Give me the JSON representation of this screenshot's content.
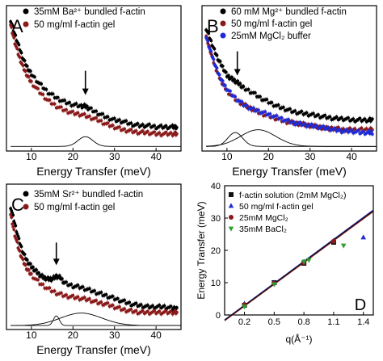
{
  "chart_data": [
    {
      "type": "scatter",
      "panel_label": "A",
      "xlabel": "Energy Transfer (meV)",
      "ylabel": "",
      "xlim": [
        4,
        46
      ],
      "ylim": [
        0,
        1
      ],
      "xticks": [
        "10",
        "20",
        "30",
        "40"
      ],
      "legend": {
        "placement": "top-right"
      },
      "series": [
        {
          "name": "35mM Ba²⁺ bundled f-actin",
          "color": "#000000",
          "marker": "circle",
          "x": [
            5,
            6,
            7,
            8,
            9,
            10,
            12,
            14,
            16,
            18,
            20,
            22,
            23,
            24,
            26,
            28,
            30,
            32,
            34,
            36,
            38,
            40,
            42,
            44,
            45
          ],
          "y": [
            0.92,
            0.82,
            0.73,
            0.64,
            0.58,
            0.53,
            0.46,
            0.4,
            0.36,
            0.33,
            0.31,
            0.3,
            0.3,
            0.28,
            0.25,
            0.22,
            0.2,
            0.19,
            0.17,
            0.16,
            0.16,
            0.15,
            0.15,
            0.15,
            0.15
          ]
        },
        {
          "name": "50 mg/ml f-actin gel",
          "color": "#8b1a1a",
          "marker": "circle",
          "x": [
            5,
            6,
            7,
            8,
            9,
            10,
            12,
            14,
            16,
            18,
            20,
            22,
            24,
            26,
            28,
            30,
            32,
            34,
            36,
            38,
            40,
            42,
            44,
            45
          ],
          "y": [
            0.88,
            0.76,
            0.66,
            0.58,
            0.52,
            0.47,
            0.4,
            0.34,
            0.3,
            0.27,
            0.25,
            0.24,
            0.22,
            0.2,
            0.17,
            0.15,
            0.13,
            0.12,
            0.11,
            0.11,
            0.1,
            0.1,
            0.1,
            0.1
          ]
        }
      ],
      "fit_curves": [
        {
          "type": "peak",
          "center": 23,
          "height": 0.07,
          "width": 2.5,
          "baseline": 0.01
        }
      ],
      "annotation": {
        "type": "arrow",
        "x": 23,
        "y": 0.38
      }
    },
    {
      "type": "scatter",
      "panel_label": "B",
      "xlabel": "Energy Transfer (meV)",
      "ylabel": "",
      "xlim": [
        4,
        46
      ],
      "ylim": [
        0,
        1
      ],
      "xticks": [
        "10",
        "20",
        "30",
        "40"
      ],
      "legend": {
        "placement": "top-right"
      },
      "series": [
        {
          "name": "60 mM Mg²⁺ bundled f-actin",
          "color": "#000000",
          "marker": "circle",
          "x": [
            5,
            6,
            7,
            8,
            9,
            10,
            11,
            12,
            13,
            14,
            16,
            18,
            20,
            22,
            24,
            26,
            28,
            30,
            32,
            34,
            36,
            38,
            40,
            42,
            44,
            45
          ],
          "y": [
            0.86,
            0.78,
            0.7,
            0.63,
            0.58,
            0.52,
            0.5,
            0.48,
            0.46,
            0.43,
            0.4,
            0.36,
            0.33,
            0.3,
            0.28,
            0.26,
            0.25,
            0.24,
            0.23,
            0.22,
            0.21,
            0.21,
            0.2,
            0.2,
            0.2,
            0.2
          ]
        },
        {
          "name": "50 mg/ml f-actin gel",
          "color": "#8b1a1a",
          "marker": "circle",
          "x": [
            5,
            6,
            7,
            8,
            9,
            10,
            12,
            14,
            16,
            18,
            20,
            22,
            24,
            26,
            28,
            30,
            32,
            34,
            36,
            38,
            40,
            42,
            44,
            45
          ],
          "y": [
            0.8,
            0.7,
            0.6,
            0.52,
            0.46,
            0.41,
            0.35,
            0.31,
            0.28,
            0.25,
            0.23,
            0.21,
            0.19,
            0.18,
            0.17,
            0.16,
            0.15,
            0.14,
            0.14,
            0.13,
            0.13,
            0.13,
            0.13,
            0.13
          ]
        },
        {
          "name": "25mM MgCl₂ buffer",
          "color": "#1f2bd6",
          "marker": "circle",
          "x": [
            5,
            6,
            7,
            8,
            9,
            10,
            12,
            14,
            16,
            18,
            20,
            22,
            24,
            26,
            28,
            30,
            32,
            34,
            36,
            38,
            40,
            42,
            44,
            45
          ],
          "y": [
            0.8,
            0.7,
            0.61,
            0.53,
            0.47,
            0.42,
            0.36,
            0.31,
            0.28,
            0.26,
            0.24,
            0.22,
            0.2,
            0.18,
            0.17,
            0.16,
            0.15,
            0.14,
            0.13,
            0.12,
            0.12,
            0.11,
            0.11,
            0.11
          ]
        }
      ],
      "fit_curves": [
        {
          "type": "peak",
          "center": 12,
          "height": 0.1,
          "width": 2.5,
          "baseline": 0.01
        },
        {
          "type": "peak",
          "center": 17.5,
          "height": 0.12,
          "width": 6,
          "baseline": 0.01
        }
      ],
      "annotation": {
        "type": "arrow",
        "x": 12.5,
        "y": 0.52
      }
    },
    {
      "type": "scatter",
      "panel_label": "C",
      "xlabel": "Energy Transfer (meV)",
      "ylabel": "",
      "xlim": [
        4,
        46
      ],
      "ylim": [
        0,
        1
      ],
      "xticks": [
        "10",
        "20",
        "30",
        "40"
      ],
      "legend": {
        "placement": "top-right"
      },
      "series": [
        {
          "name": "35mM Sr²⁺ bundled f-actin",
          "color": "#000000",
          "marker": "circle",
          "x": [
            5,
            6,
            7,
            8,
            9,
            10,
            11,
            12,
            13,
            14,
            15,
            16,
            17,
            18,
            20,
            22,
            24,
            26,
            28,
            30,
            32,
            34,
            36,
            38,
            40,
            42,
            44,
            45
          ],
          "y": [
            0.86,
            0.74,
            0.62,
            0.53,
            0.47,
            0.43,
            0.4,
            0.37,
            0.35,
            0.34,
            0.34,
            0.36,
            0.35,
            0.31,
            0.29,
            0.28,
            0.26,
            0.24,
            0.22,
            0.2,
            0.18,
            0.16,
            0.15,
            0.14,
            0.14,
            0.14,
            0.13,
            0.13
          ]
        },
        {
          "name": "50 mg/ml f-actin gel",
          "color": "#8b1a1a",
          "marker": "circle",
          "x": [
            5,
            6,
            7,
            8,
            9,
            10,
            12,
            14,
            16,
            18,
            20,
            22,
            24,
            26,
            28,
            30,
            32,
            34,
            36,
            38,
            40,
            42,
            44,
            45
          ],
          "y": [
            0.8,
            0.66,
            0.55,
            0.47,
            0.41,
            0.37,
            0.31,
            0.27,
            0.24,
            0.22,
            0.21,
            0.2,
            0.19,
            0.17,
            0.16,
            0.14,
            0.12,
            0.11,
            0.1,
            0.1,
            0.1,
            0.1,
            0.1,
            0.1
          ]
        }
      ],
      "fit_curves": [
        {
          "type": "peak",
          "center": 16,
          "height": 0.07,
          "width": 1.0,
          "baseline": 0.005
        },
        {
          "type": "peak",
          "center": 22,
          "height": 0.09,
          "width": 7,
          "baseline": 0.005
        }
      ],
      "annotation": {
        "type": "arrow",
        "x": 16,
        "y": 0.44
      }
    },
    {
      "type": "scatter",
      "panel_label": "D",
      "xlabel": "q(Å⁻¹)",
      "ylabel": "Energy Transfer (meV)",
      "xlim": [
        0,
        1.5
      ],
      "ylim": [
        0,
        40
      ],
      "xticks": [
        "0.2",
        "0.5",
        "0.8",
        "1.1",
        "1.4"
      ],
      "yticks": [
        "0",
        "10",
        "20",
        "30",
        "40"
      ],
      "legend": {
        "placement": "top-left"
      },
      "series": [
        {
          "name": "f-actin solution (2mM MgCl₂)",
          "color": "#111111",
          "marker": "square",
          "x": [
            0.2,
            0.5,
            0.8,
            1.1
          ],
          "y": [
            3.0,
            10.0,
            16.0,
            22.5
          ]
        },
        {
          "name": "50 mg/ml f-actin gel",
          "color": "#1f2bd6",
          "marker": "triangle-up",
          "x": [
            0.2,
            0.5,
            0.8,
            1.1,
            1.4
          ],
          "y": [
            3.5,
            10.0,
            16.5,
            23.0,
            24.0
          ]
        },
        {
          "name": "25mM MgCl₂",
          "color": "#8b1a1a",
          "marker": "circle",
          "x": [
            0.2,
            0.5,
            0.8,
            1.1
          ],
          "y": [
            3.2,
            9.8,
            16.2,
            22.8
          ]
        },
        {
          "name": "35mM BaCl₂",
          "color": "#2ca02c",
          "marker": "triangle-down",
          "x": [
            0.2,
            0.5,
            0.8,
            0.85,
            1.2
          ],
          "y": [
            2.6,
            9.5,
            16.5,
            17.0,
            21.5
          ]
        }
      ],
      "fit_lines": [
        {
          "color": "#1f2bd6",
          "x": [
            0,
            1.5
          ],
          "y": [
            -1.5,
            32.5
          ]
        },
        {
          "color": "#8b1a1a",
          "x": [
            0,
            1.5
          ],
          "y": [
            -1.8,
            32.0
          ]
        },
        {
          "color": "#111111",
          "x": [
            0,
            1.5
          ],
          "y": [
            -1.6,
            32.3
          ]
        }
      ]
    }
  ]
}
